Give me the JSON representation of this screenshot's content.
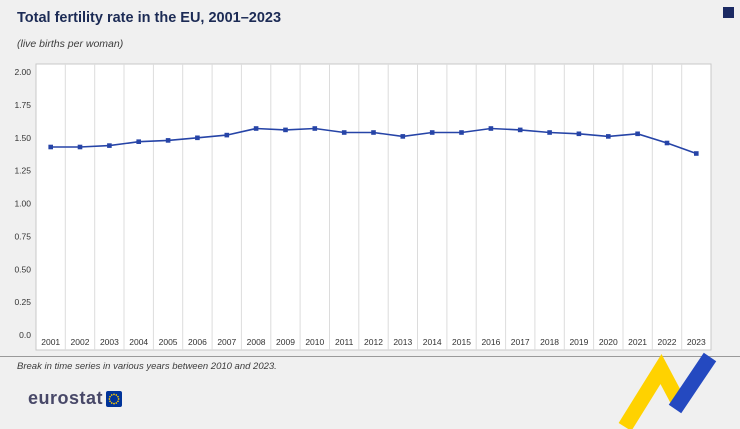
{
  "title": "Total fertility rate in the EU, 2001–2023",
  "subtitle": "(live births per woman)",
  "footnote": "Break in time series in various years between 2010 and 2023.",
  "logo": {
    "text": "eurostat"
  },
  "colors": {
    "line": "#2644a7",
    "title_navy": "#1c2b55",
    "grid": "#dcdcdc",
    "panel_border": "#c9c9c9",
    "accent_yellow": "#ffd200",
    "accent_blue": "#2449c0",
    "eu_flag_blue": "#003399",
    "eu_star_yellow": "#ffcc00"
  },
  "chart_data": {
    "type": "line",
    "title": "Total fertility rate in the EU, 2001–2023",
    "xlabel": "",
    "ylabel": "live births per woman",
    "ylim": [
      0,
      2
    ],
    "yticks": [
      "2.00",
      "1.75",
      "1.50",
      "1.25",
      "1.00",
      "0.75",
      "0.50",
      "0.25",
      "0.0"
    ],
    "grid": "vertical",
    "legend": "none",
    "marker": "square",
    "categories": [
      "2001",
      "2002",
      "2003",
      "2004",
      "2005",
      "2006",
      "2007",
      "2008",
      "2009",
      "2010",
      "2011",
      "2012",
      "2013",
      "2014",
      "2015",
      "2016",
      "2017",
      "2018",
      "2019",
      "2020",
      "2021",
      "2022",
      "2023"
    ],
    "values": [
      1.43,
      1.43,
      1.44,
      1.47,
      1.48,
      1.5,
      1.52,
      1.57,
      1.56,
      1.57,
      1.54,
      1.54,
      1.51,
      1.54,
      1.54,
      1.57,
      1.56,
      1.54,
      1.53,
      1.51,
      1.53,
      1.46,
      1.38
    ]
  }
}
